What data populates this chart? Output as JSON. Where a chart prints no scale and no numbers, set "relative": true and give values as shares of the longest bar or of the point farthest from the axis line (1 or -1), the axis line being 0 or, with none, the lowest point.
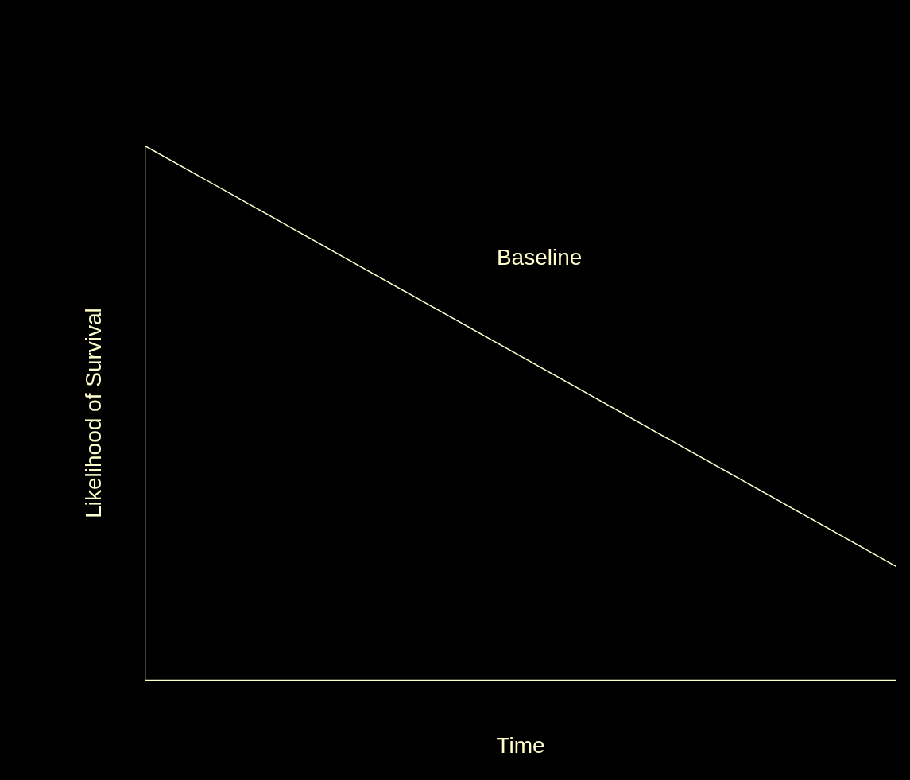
{
  "chart_data": {
    "type": "line",
    "relative": true,
    "xlabel": "Time",
    "ylabel": "Likelihood of Survival",
    "categories": [
      null,
      null
    ],
    "series": [
      {
        "name": "Baseline",
        "color": "#ffffcc",
        "values": [
          1,
          0.213
        ]
      }
    ],
    "legend": false,
    "marker": "none",
    "line_style": "solid"
  }
}
